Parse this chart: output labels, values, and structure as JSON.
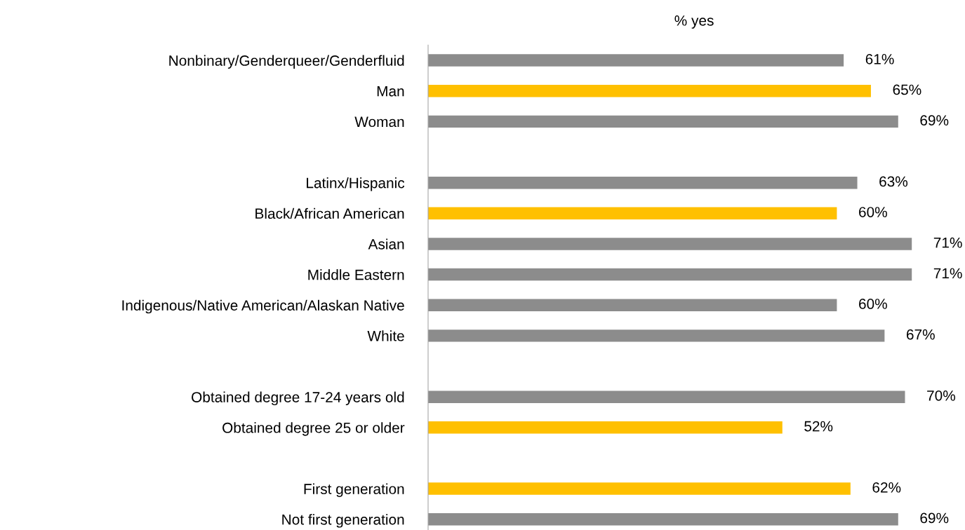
{
  "chart_data": {
    "type": "bar",
    "orientation": "horizontal",
    "title": "% yes",
    "categories": [
      "Nonbinary/Genderqueer/Genderfluid",
      "Man",
      "Woman",
      null,
      "Latinx/Hispanic",
      "Black/African American",
      "Asian",
      "Middle Eastern",
      "Indigenous/Native American/Alaskan Native",
      "White",
      null,
      "Obtained degree 17-24 years old",
      "Obtained degree 25 or older",
      null,
      "First generation",
      "Not first generation"
    ],
    "values": [
      61,
      65,
      69,
      null,
      63,
      60,
      71,
      71,
      60,
      67,
      null,
      70,
      52,
      null,
      62,
      69
    ],
    "colors": [
      "#8c8c8c",
      "#ffc000",
      "#8c8c8c",
      null,
      "#8c8c8c",
      "#ffc000",
      "#8c8c8c",
      "#8c8c8c",
      "#8c8c8c",
      "#8c8c8c",
      null,
      "#8c8c8c",
      "#ffc000",
      null,
      "#ffc000",
      "#8c8c8c"
    ],
    "value_labels": [
      "61%",
      "65%",
      "69%",
      null,
      "63%",
      "60%",
      "71%",
      "71%",
      "60%",
      "67%",
      null,
      "70%",
      "52%",
      null,
      "62%",
      "69%"
    ],
    "grid": false,
    "legend": false
  }
}
